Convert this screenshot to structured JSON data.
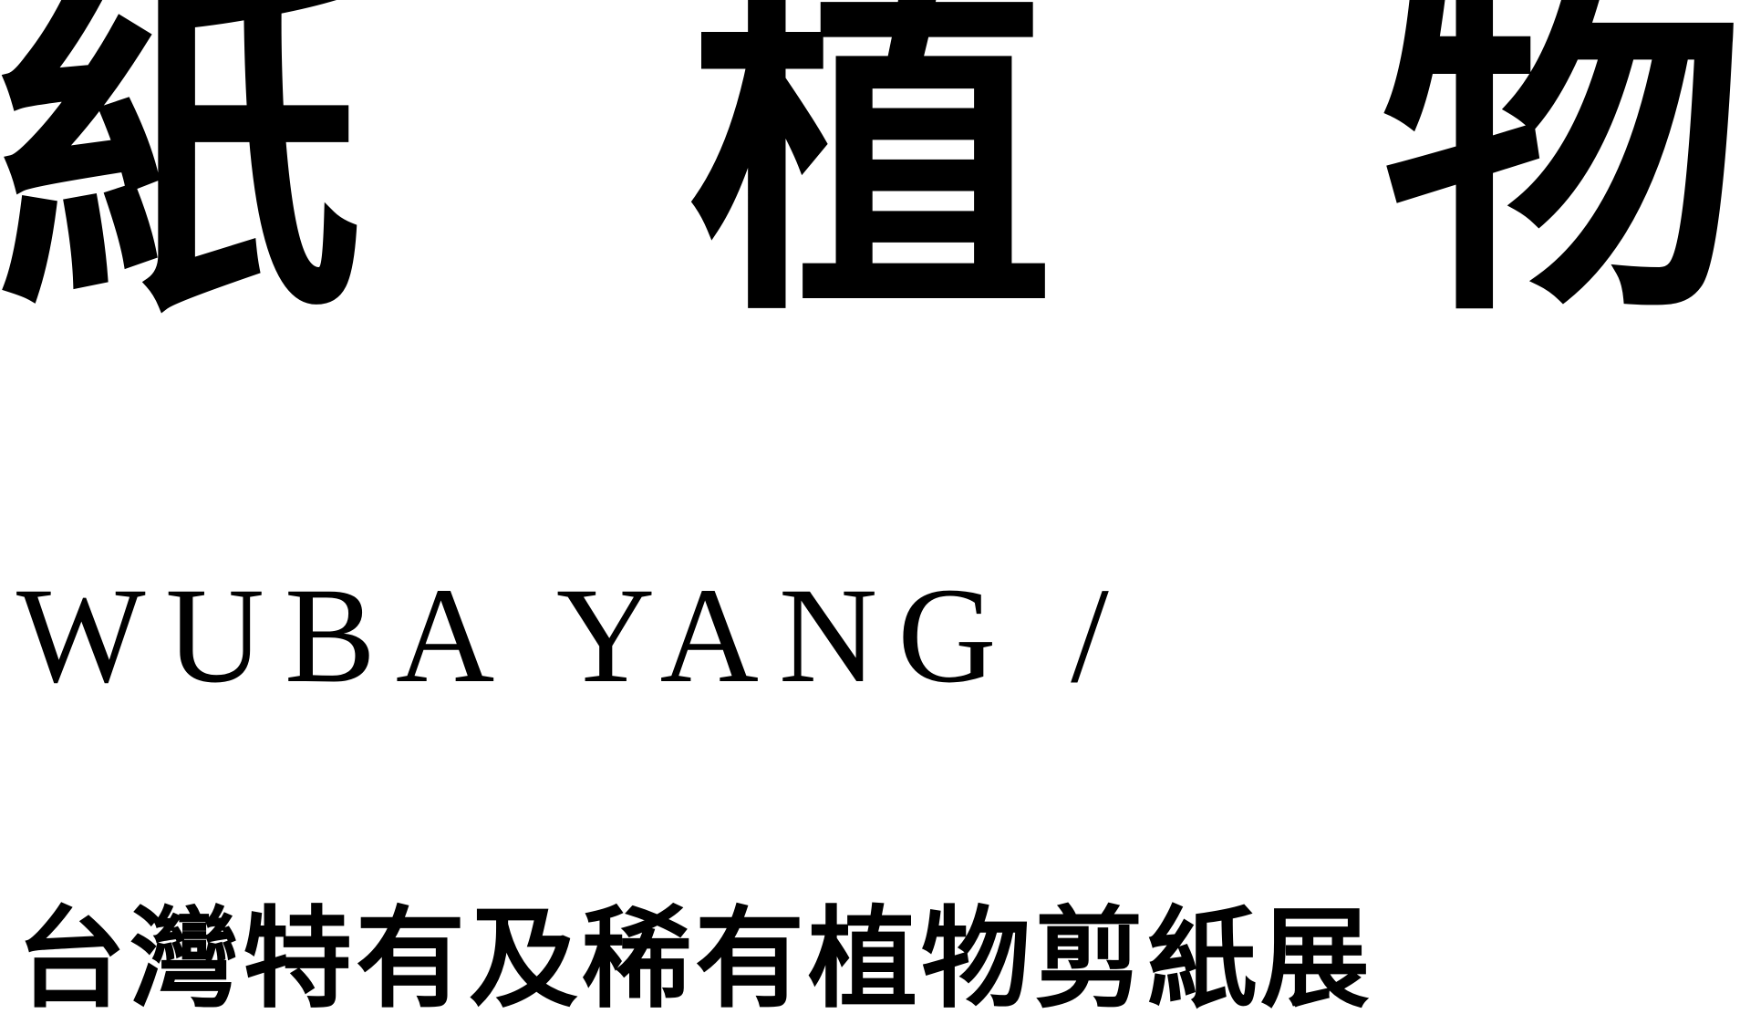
{
  "poster": {
    "title_chars": [
      "紙",
      "植",
      "物"
    ],
    "subtitle": "WUBA YANG /",
    "caption": "台灣特有及稀有植物剪紙展"
  }
}
